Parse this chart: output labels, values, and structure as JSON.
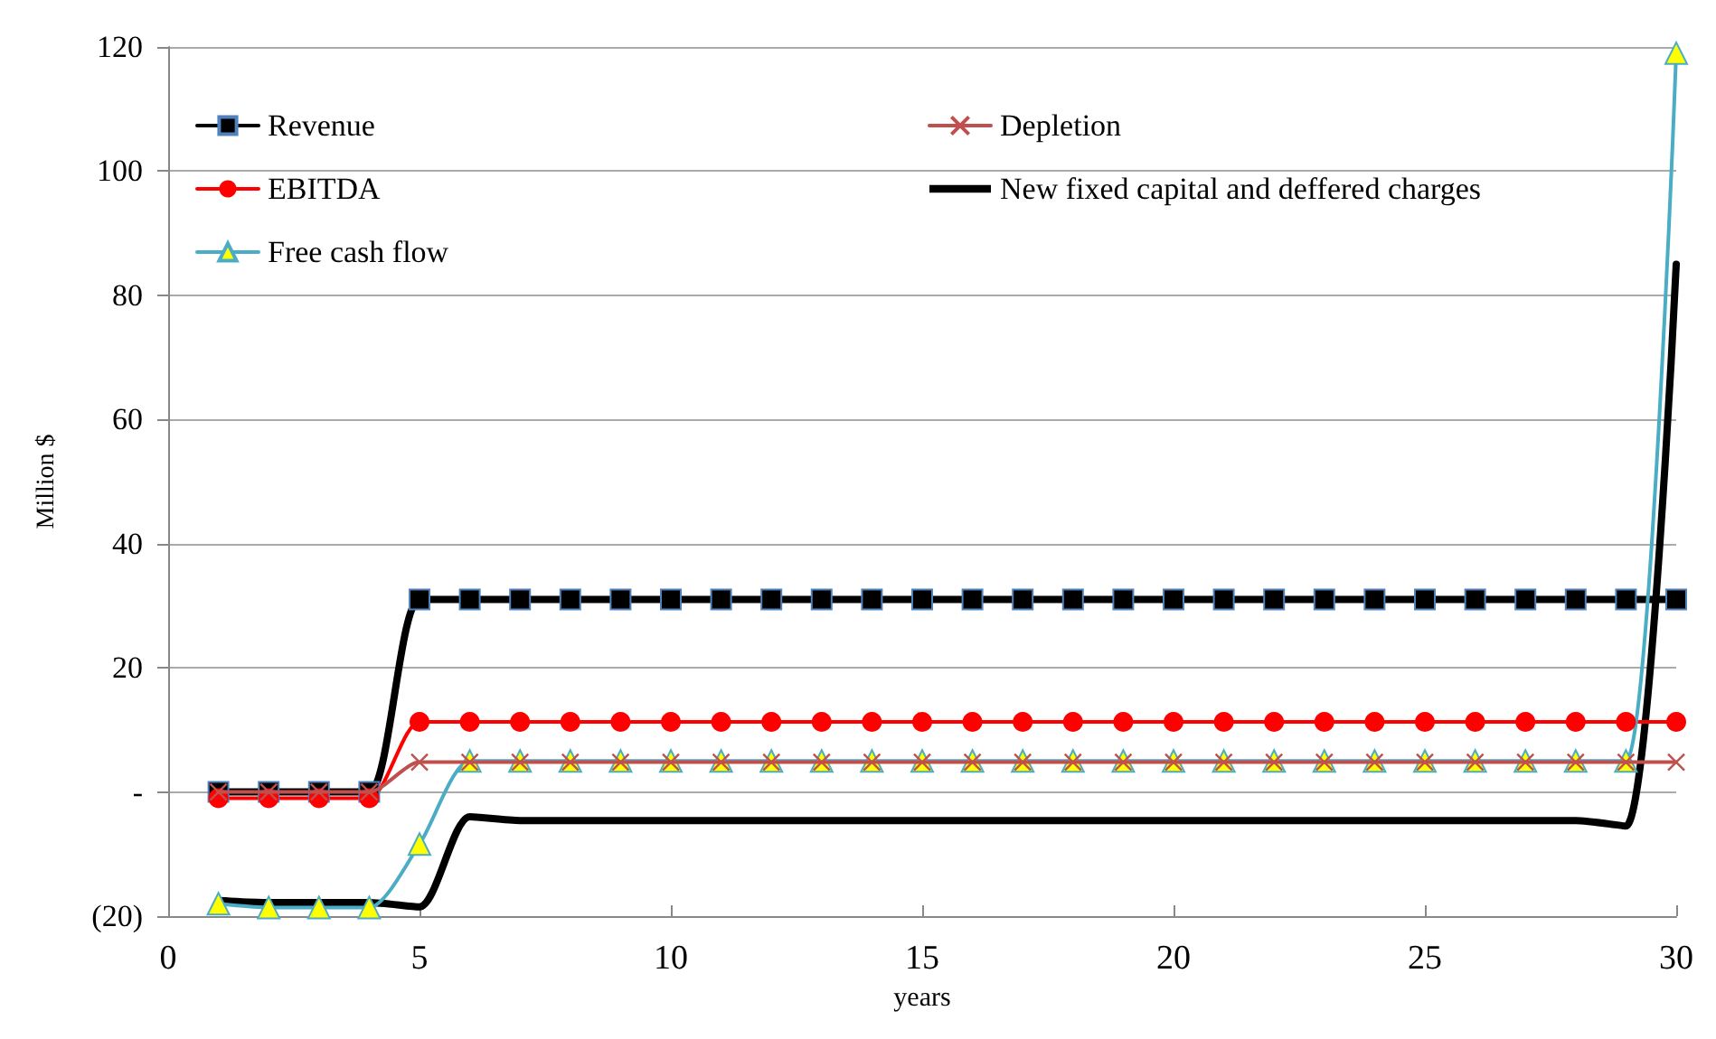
{
  "chart_data": {
    "type": "line",
    "xlabel": "years",
    "ylabel": "Million $",
    "x": [
      1,
      2,
      3,
      4,
      5,
      6,
      7,
      8,
      9,
      10,
      11,
      12,
      13,
      14,
      15,
      16,
      17,
      18,
      19,
      20,
      21,
      22,
      23,
      24,
      25,
      26,
      27,
      28,
      29,
      30
    ],
    "xlim": [
      0,
      30
    ],
    "xticks": [
      0,
      5,
      10,
      15,
      20,
      25,
      30
    ],
    "ylim": [
      -20,
      120
    ],
    "yticks": [
      {
        "value": -20,
        "label": "(20)"
      },
      {
        "value": 0,
        "label": "-"
      },
      20,
      40,
      60,
      80,
      100,
      120
    ],
    "grid": "y",
    "legend": "top left",
    "series": [
      {
        "name": "Revenue",
        "color": "#000000",
        "marker": "square",
        "values": [
          0,
          0,
          0,
          0,
          31,
          31,
          31,
          31,
          31,
          31,
          31,
          31,
          31,
          31,
          31,
          31,
          31,
          31,
          31,
          31,
          31,
          31,
          31,
          31,
          31,
          31,
          31,
          31,
          31,
          31
        ]
      },
      {
        "name": "Depletion",
        "color": "#c0504d",
        "marker": "cross",
        "values": [
          0,
          0,
          0,
          0,
          4.8,
          4.8,
          4.8,
          4.8,
          4.8,
          4.8,
          4.8,
          4.8,
          4.8,
          4.8,
          4.8,
          4.8,
          4.8,
          4.8,
          4.8,
          4.8,
          4.8,
          4.8,
          4.8,
          4.8,
          4.8,
          4.8,
          4.8,
          4.8,
          4.8,
          4.8
        ]
      },
      {
        "name": "EBITDA",
        "color": "#ff0000",
        "marker": "circle",
        "values": [
          -1,
          -1,
          -1,
          -1,
          11.3,
          11.3,
          11.3,
          11.3,
          11.3,
          11.3,
          11.3,
          11.3,
          11.3,
          11.3,
          11.3,
          11.3,
          11.3,
          11.3,
          11.3,
          11.3,
          11.3,
          11.3,
          11.3,
          11.3,
          11.3,
          11.3,
          11.3,
          11.3,
          11.3,
          11.3
        ]
      },
      {
        "name": "New fixed capital and deffered charges",
        "color": "#000000",
        "marker": "none",
        "values": [
          -17.5,
          -17.8,
          -17.8,
          -17.8,
          -18.5,
          -4,
          -4.6,
          -4.6,
          -4.6,
          -4.6,
          -4.6,
          -4.6,
          -4.6,
          -4.6,
          -4.6,
          -4.6,
          -4.6,
          -4.6,
          -4.6,
          -4.6,
          -4.6,
          -4.6,
          -4.6,
          -4.6,
          -4.6,
          -4.6,
          -4.6,
          -4.6,
          -5.5,
          85
        ]
      },
      {
        "name": "Free cash flow",
        "color": "#4bacc6",
        "marker": "triangle",
        "values": [
          -18,
          -18.6,
          -18.6,
          -18.6,
          -8.4,
          5,
          5,
          5,
          5,
          5,
          5,
          5,
          5,
          5,
          5,
          5,
          5,
          5,
          5,
          5,
          5,
          5,
          5,
          5,
          5,
          5,
          5,
          5,
          5,
          119
        ]
      }
    ]
  }
}
